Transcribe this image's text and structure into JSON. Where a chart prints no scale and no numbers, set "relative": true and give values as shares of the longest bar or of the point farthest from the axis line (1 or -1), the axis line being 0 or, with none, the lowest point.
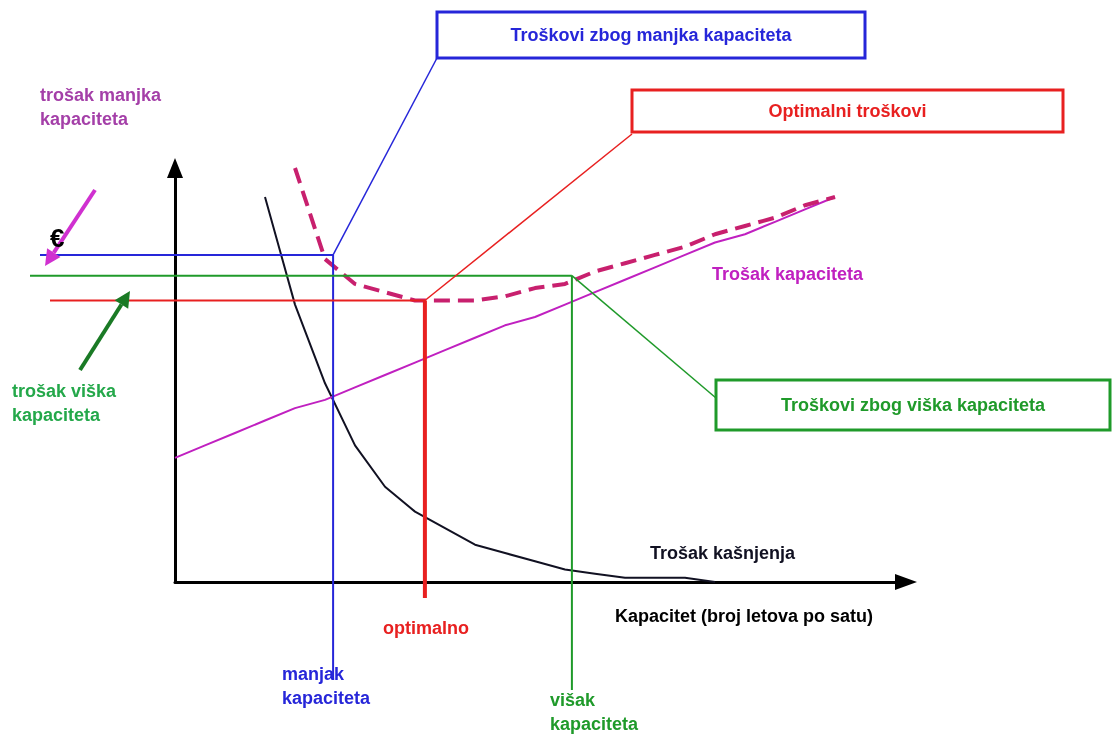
{
  "chart_data": {
    "type": "line",
    "relative": true,
    "xlabel": "Kapacitet (broj letova po satu)",
    "ylabel": "€",
    "legend": false,
    "grid": false,
    "marker": "none",
    "categories": [
      null,
      null,
      null,
      null,
      null,
      null,
      null,
      null,
      null,
      null,
      null,
      null,
      null,
      null,
      null,
      null,
      null,
      null,
      null,
      null,
      null,
      null,
      null,
      null,
      null
    ],
    "series": [
      {
        "name": "Trošak kašnjenja",
        "color": "#111122",
        "values": [
          null,
          null,
          null,
          0.93,
          0.67,
          0.48,
          0.33,
          0.23,
          0.17,
          0.13,
          0.09,
          0.07,
          0.05,
          0.03,
          0.02,
          0.01,
          0.01,
          0.01,
          0,
          null,
          null,
          null,
          null,
          null,
          null
        ]
      },
      {
        "name": "Trošak kapaciteta",
        "color": "#c020c0",
        "values": [
          0.3,
          0.33,
          0.36,
          0.39,
          0.42,
          0.44,
          0.47,
          0.5,
          0.53,
          0.56,
          0.59,
          0.62,
          0.64,
          0.67,
          0.7,
          0.73,
          0.76,
          0.79,
          0.82,
          0.84,
          0.87,
          0.9,
          0.93,
          null,
          null
        ]
      },
      {
        "color": "#c8206e",
        "line_style": "dashed",
        "values": [
          null,
          null,
          null,
          null,
          1.0,
          0.78,
          0.72,
          0.7,
          0.68,
          0.68,
          0.68,
          0.69,
          0.71,
          0.72,
          0.75,
          0.77,
          0.79,
          0.81,
          0.84,
          0.86,
          0.88,
          0.91,
          0.93,
          null,
          null
        ]
      }
    ],
    "ref_lines": [
      {
        "axis": "y",
        "value": 0.79,
        "color": "#2626d9"
      },
      {
        "axis": "y",
        "value": 0.68,
        "color": "#e82020"
      },
      {
        "axis": "y",
        "value": 0.74,
        "color": "#1f9a2a"
      }
    ],
    "annotations": [
      "Troškovi zbog manjka kapaciteta",
      "Optimalni troškovi",
      "Troškovi zbog viška kapaciteta",
      "trošak manjka kapaciteta",
      "trošak viška kapaciteta",
      "manjak kapaciteta",
      "optimalno",
      "višak kapaciteta"
    ]
  }
}
